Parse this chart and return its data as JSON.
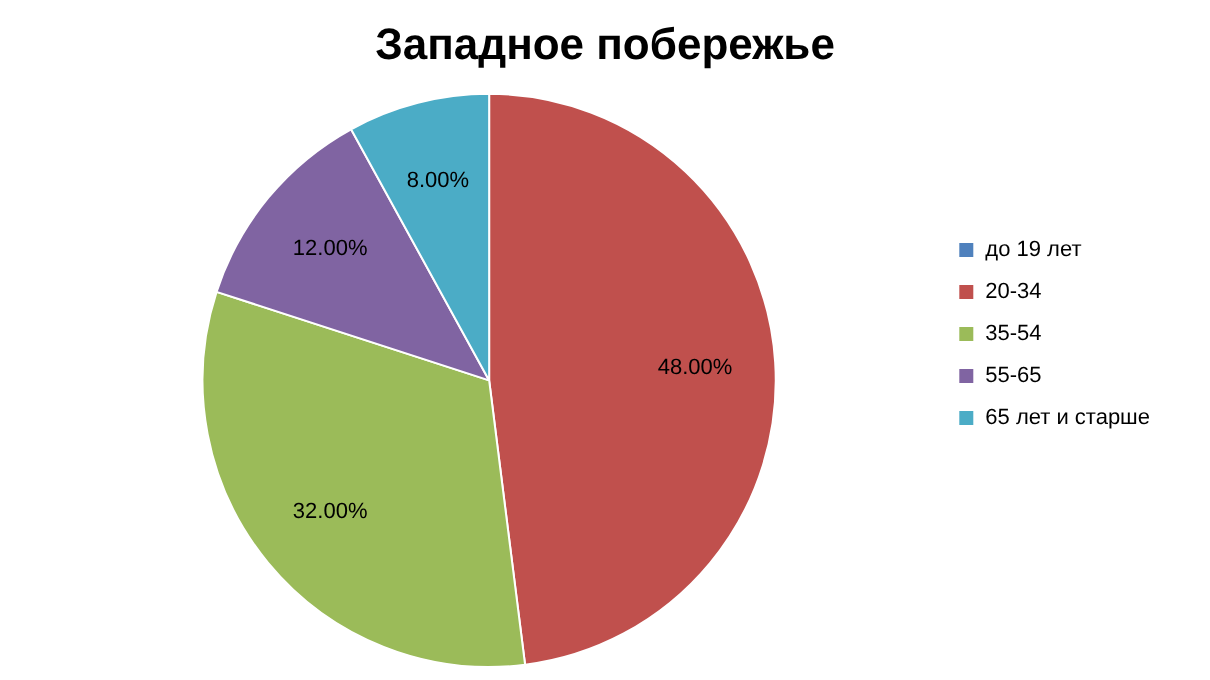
{
  "chart_data": {
    "type": "pie",
    "title": "Западное побережье",
    "categories": [
      "до 19 лет",
      "20-34",
      "35-54",
      "55-65",
      "65 лет и старше"
    ],
    "values": [
      0,
      48,
      32,
      12,
      8
    ],
    "colors": [
      "#4f81bd",
      "#c0504d",
      "#9bbb59",
      "#8064a2",
      "#4bacc6"
    ],
    "value_labels": [
      null,
      "48.00%",
      "32.00%",
      "12.00%",
      "8.00%"
    ],
    "legend": "right"
  }
}
